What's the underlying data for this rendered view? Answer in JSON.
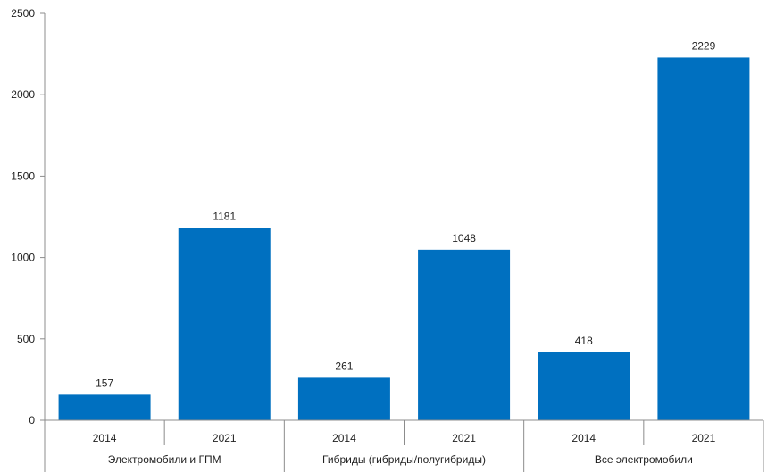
{
  "chart_data": {
    "type": "bar",
    "title": "",
    "xlabel": "",
    "ylabel": "",
    "ylim": [
      0,
      2500
    ],
    "yticks": [
      0,
      500,
      1000,
      1500,
      2000,
      2500
    ],
    "grid": false,
    "bar_color": "#0070C0",
    "groups": [
      {
        "name": "Электромобили и ГПМ",
        "bars": [
          {
            "year": "2014",
            "value": 157
          },
          {
            "year": "2021",
            "value": 1181
          }
        ]
      },
      {
        "name": "Гибриды (гибриды/полугибриды)",
        "bars": [
          {
            "year": "2014",
            "value": 261
          },
          {
            "year": "2021",
            "value": 1048
          }
        ]
      },
      {
        "name": "Все электромобили",
        "bars": [
          {
            "year": "2014",
            "value": 418
          },
          {
            "year": "2021",
            "value": 2229
          }
        ]
      }
    ]
  }
}
